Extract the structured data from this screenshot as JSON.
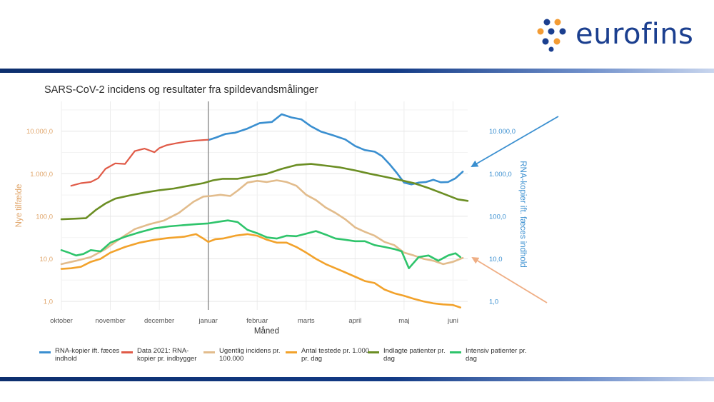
{
  "brand": {
    "name": "eurofins",
    "color": "#1b3f8f",
    "dot_colors": [
      "#1b3f8f",
      "#f39c34"
    ]
  },
  "chart_data": {
    "type": "line",
    "title": "SARS-CoV-2 incidens og resultater fra spildevandsmålinger",
    "xlabel": "Måned",
    "ylabel_left": "Nye tilfælde",
    "ylabel_right": "RNA-kopier ift. fæces indhold",
    "x_unit": "month index (0 = 1 oktober)",
    "xlim": [
      0,
      8.3
    ],
    "ylim_log10": [
      -0.2,
      4.7
    ],
    "xticks": [
      {
        "x": 0,
        "label": "oktober"
      },
      {
        "x": 1,
        "label": "november"
      },
      {
        "x": 2,
        "label": "december"
      },
      {
        "x": 3,
        "label": "januar"
      },
      {
        "x": 4,
        "label": "februar"
      },
      {
        "x": 5,
        "label": "marts"
      },
      {
        "x": 6,
        "label": "april"
      },
      {
        "x": 7,
        "label": "maj"
      },
      {
        "x": 8,
        "label": "juni"
      }
    ],
    "yticks_left": [
      {
        "v": 1,
        "label": "1,0"
      },
      {
        "v": 10,
        "label": "10,0"
      },
      {
        "v": 100,
        "label": "100,0"
      },
      {
        "v": 1000,
        "label": "1.000,0"
      },
      {
        "v": 10000,
        "label": "10.000,0"
      }
    ],
    "yticks_right": [
      {
        "v": 1,
        "label": "1,0"
      },
      {
        "v": 10,
        "label": "10,0"
      },
      {
        "v": 100,
        "label": "100,0"
      },
      {
        "v": 1000,
        "label": "1.000,0"
      },
      {
        "v": 10000,
        "label": "10.000,0"
      }
    ],
    "vline_x": 3,
    "series": [
      {
        "key": "rna",
        "name": "RNA-kopier ift. fæces indhold",
        "color": "#3a8fd0",
        "width": 2.6,
        "x": [
          3.0,
          3.15,
          3.35,
          3.55,
          3.8,
          4.05,
          4.3,
          4.5,
          4.7,
          4.9,
          5.1,
          5.3,
          5.55,
          5.8,
          6.0,
          6.2,
          6.4,
          6.55,
          6.7,
          6.85,
          7.0,
          7.15,
          7.3,
          7.45,
          7.6,
          7.75,
          7.9,
          8.05,
          8.2
        ],
        "y": [
          6200,
          7000,
          8600,
          9200,
          11500,
          15500,
          16500,
          25000,
          21000,
          19000,
          13000,
          9800,
          8000,
          6400,
          4500,
          3600,
          3300,
          2600,
          1700,
          1050,
          620,
          560,
          620,
          640,
          720,
          630,
          640,
          780,
          1120
        ]
      },
      {
        "key": "data2021",
        "name": "Data 2021: RNA-kopier pr. indbygger",
        "color": "#e05a47",
        "width": 2.2,
        "x": [
          0.2,
          0.4,
          0.6,
          0.75,
          0.9,
          1.1,
          1.3,
          1.5,
          1.7,
          1.9,
          2.0,
          2.15,
          2.35,
          2.55,
          2.75,
          2.9,
          3.0
        ],
        "y": [
          520,
          600,
          640,
          780,
          1300,
          1750,
          1700,
          3400,
          3900,
          3200,
          4000,
          4700,
          5200,
          5700,
          6000,
          6200,
          6300
        ]
      },
      {
        "key": "incidens",
        "name": "Ugentlig incidens pr. 100.000",
        "color": "#e2bc8c",
        "width": 2.6,
        "x": [
          0.0,
          0.3,
          0.6,
          0.9,
          1.2,
          1.5,
          1.8,
          2.1,
          2.4,
          2.7,
          2.9,
          3.05,
          3.25,
          3.45,
          3.6,
          3.8,
          4.0,
          4.2,
          4.4,
          4.6,
          4.8,
          5.0,
          5.2,
          5.4,
          5.6,
          5.8,
          6.0,
          6.2,
          6.4,
          6.6,
          6.8,
          7.0,
          7.2,
          7.4,
          7.6,
          7.8,
          8.0,
          8.2
        ],
        "y": [
          7.5,
          9,
          11,
          17,
          30,
          50,
          65,
          80,
          120,
          220,
          290,
          300,
          320,
          300,
          400,
          620,
          680,
          640,
          700,
          640,
          520,
          320,
          240,
          160,
          120,
          85,
          55,
          43,
          35,
          25,
          21,
          14,
          12,
          10,
          9,
          7.5,
          8.5,
          10.5
        ]
      },
      {
        "key": "testede",
        "name": "Antal testede pr. 1.000 pr. dag",
        "color": "#f2a22b",
        "width": 2.6,
        "x": [
          0.0,
          0.2,
          0.4,
          0.6,
          0.8,
          1.0,
          1.3,
          1.6,
          1.9,
          2.2,
          2.5,
          2.75,
          2.9,
          3.0,
          3.15,
          3.3,
          3.55,
          3.8,
          4.0,
          4.2,
          4.4,
          4.6,
          4.8,
          5.0,
          5.2,
          5.4,
          5.6,
          5.8,
          6.0,
          6.2,
          6.4,
          6.6,
          6.8,
          7.0,
          7.2,
          7.4,
          7.6,
          7.8,
          8.0,
          8.15
        ],
        "y": [
          5.8,
          6,
          6.5,
          8.5,
          10,
          14,
          19,
          24,
          28,
          31,
          33,
          38,
          30,
          25,
          29,
          30,
          35,
          38,
          35,
          28,
          24,
          24,
          19,
          14,
          10,
          7.5,
          6,
          4.8,
          3.8,
          3,
          2.7,
          1.9,
          1.55,
          1.35,
          1.15,
          1.0,
          0.9,
          0.85,
          0.82,
          0.72
        ]
      },
      {
        "key": "indlagte",
        "name": "Indlagte patienter pr. dag",
        "color": "#6b8e23",
        "width": 2.6,
        "x": [
          0.0,
          0.3,
          0.5,
          0.7,
          0.9,
          1.1,
          1.4,
          1.7,
          2.0,
          2.3,
          2.6,
          2.9,
          3.1,
          3.3,
          3.6,
          3.9,
          4.2,
          4.5,
          4.8,
          5.1,
          5.4,
          5.7,
          6.0,
          6.3,
          6.6,
          6.9,
          7.2,
          7.5,
          7.8,
          8.1,
          8.3
        ],
        "y": [
          85,
          88,
          90,
          140,
          200,
          260,
          310,
          360,
          410,
          450,
          520,
          600,
          700,
          760,
          760,
          870,
          1000,
          1300,
          1600,
          1700,
          1550,
          1400,
          1200,
          1000,
          850,
          720,
          600,
          460,
          340,
          250,
          230
        ]
      },
      {
        "key": "intensiv",
        "name": "Intensiv patienter pr. dag",
        "color": "#2ec46b",
        "width": 2.6,
        "x": [
          0.0,
          0.15,
          0.3,
          0.45,
          0.6,
          0.8,
          1.0,
          1.3,
          1.6,
          1.9,
          2.2,
          2.5,
          2.8,
          3.0,
          3.2,
          3.4,
          3.6,
          3.8,
          4.0,
          4.2,
          4.4,
          4.6,
          4.8,
          5.0,
          5.2,
          5.4,
          5.6,
          5.8,
          6.0,
          6.2,
          6.4,
          6.6,
          6.8,
          6.95,
          7.1,
          7.3,
          7.5,
          7.7,
          7.9,
          8.05,
          8.15
        ],
        "y": [
          16,
          14,
          12,
          13,
          16,
          15,
          24,
          33,
          42,
          52,
          58,
          62,
          66,
          68,
          74,
          80,
          73,
          48,
          40,
          32,
          30,
          35,
          34,
          39,
          45,
          37,
          30,
          28,
          26,
          26,
          21,
          19,
          17,
          15,
          6,
          11,
          12,
          9,
          12,
          13.5,
          11
        ]
      }
    ]
  },
  "arrows": [
    {
      "name": "arrow-to-rna",
      "color": "#3a8fd0"
    },
    {
      "name": "arrow-to-incidens",
      "color": "#efae84"
    }
  ]
}
